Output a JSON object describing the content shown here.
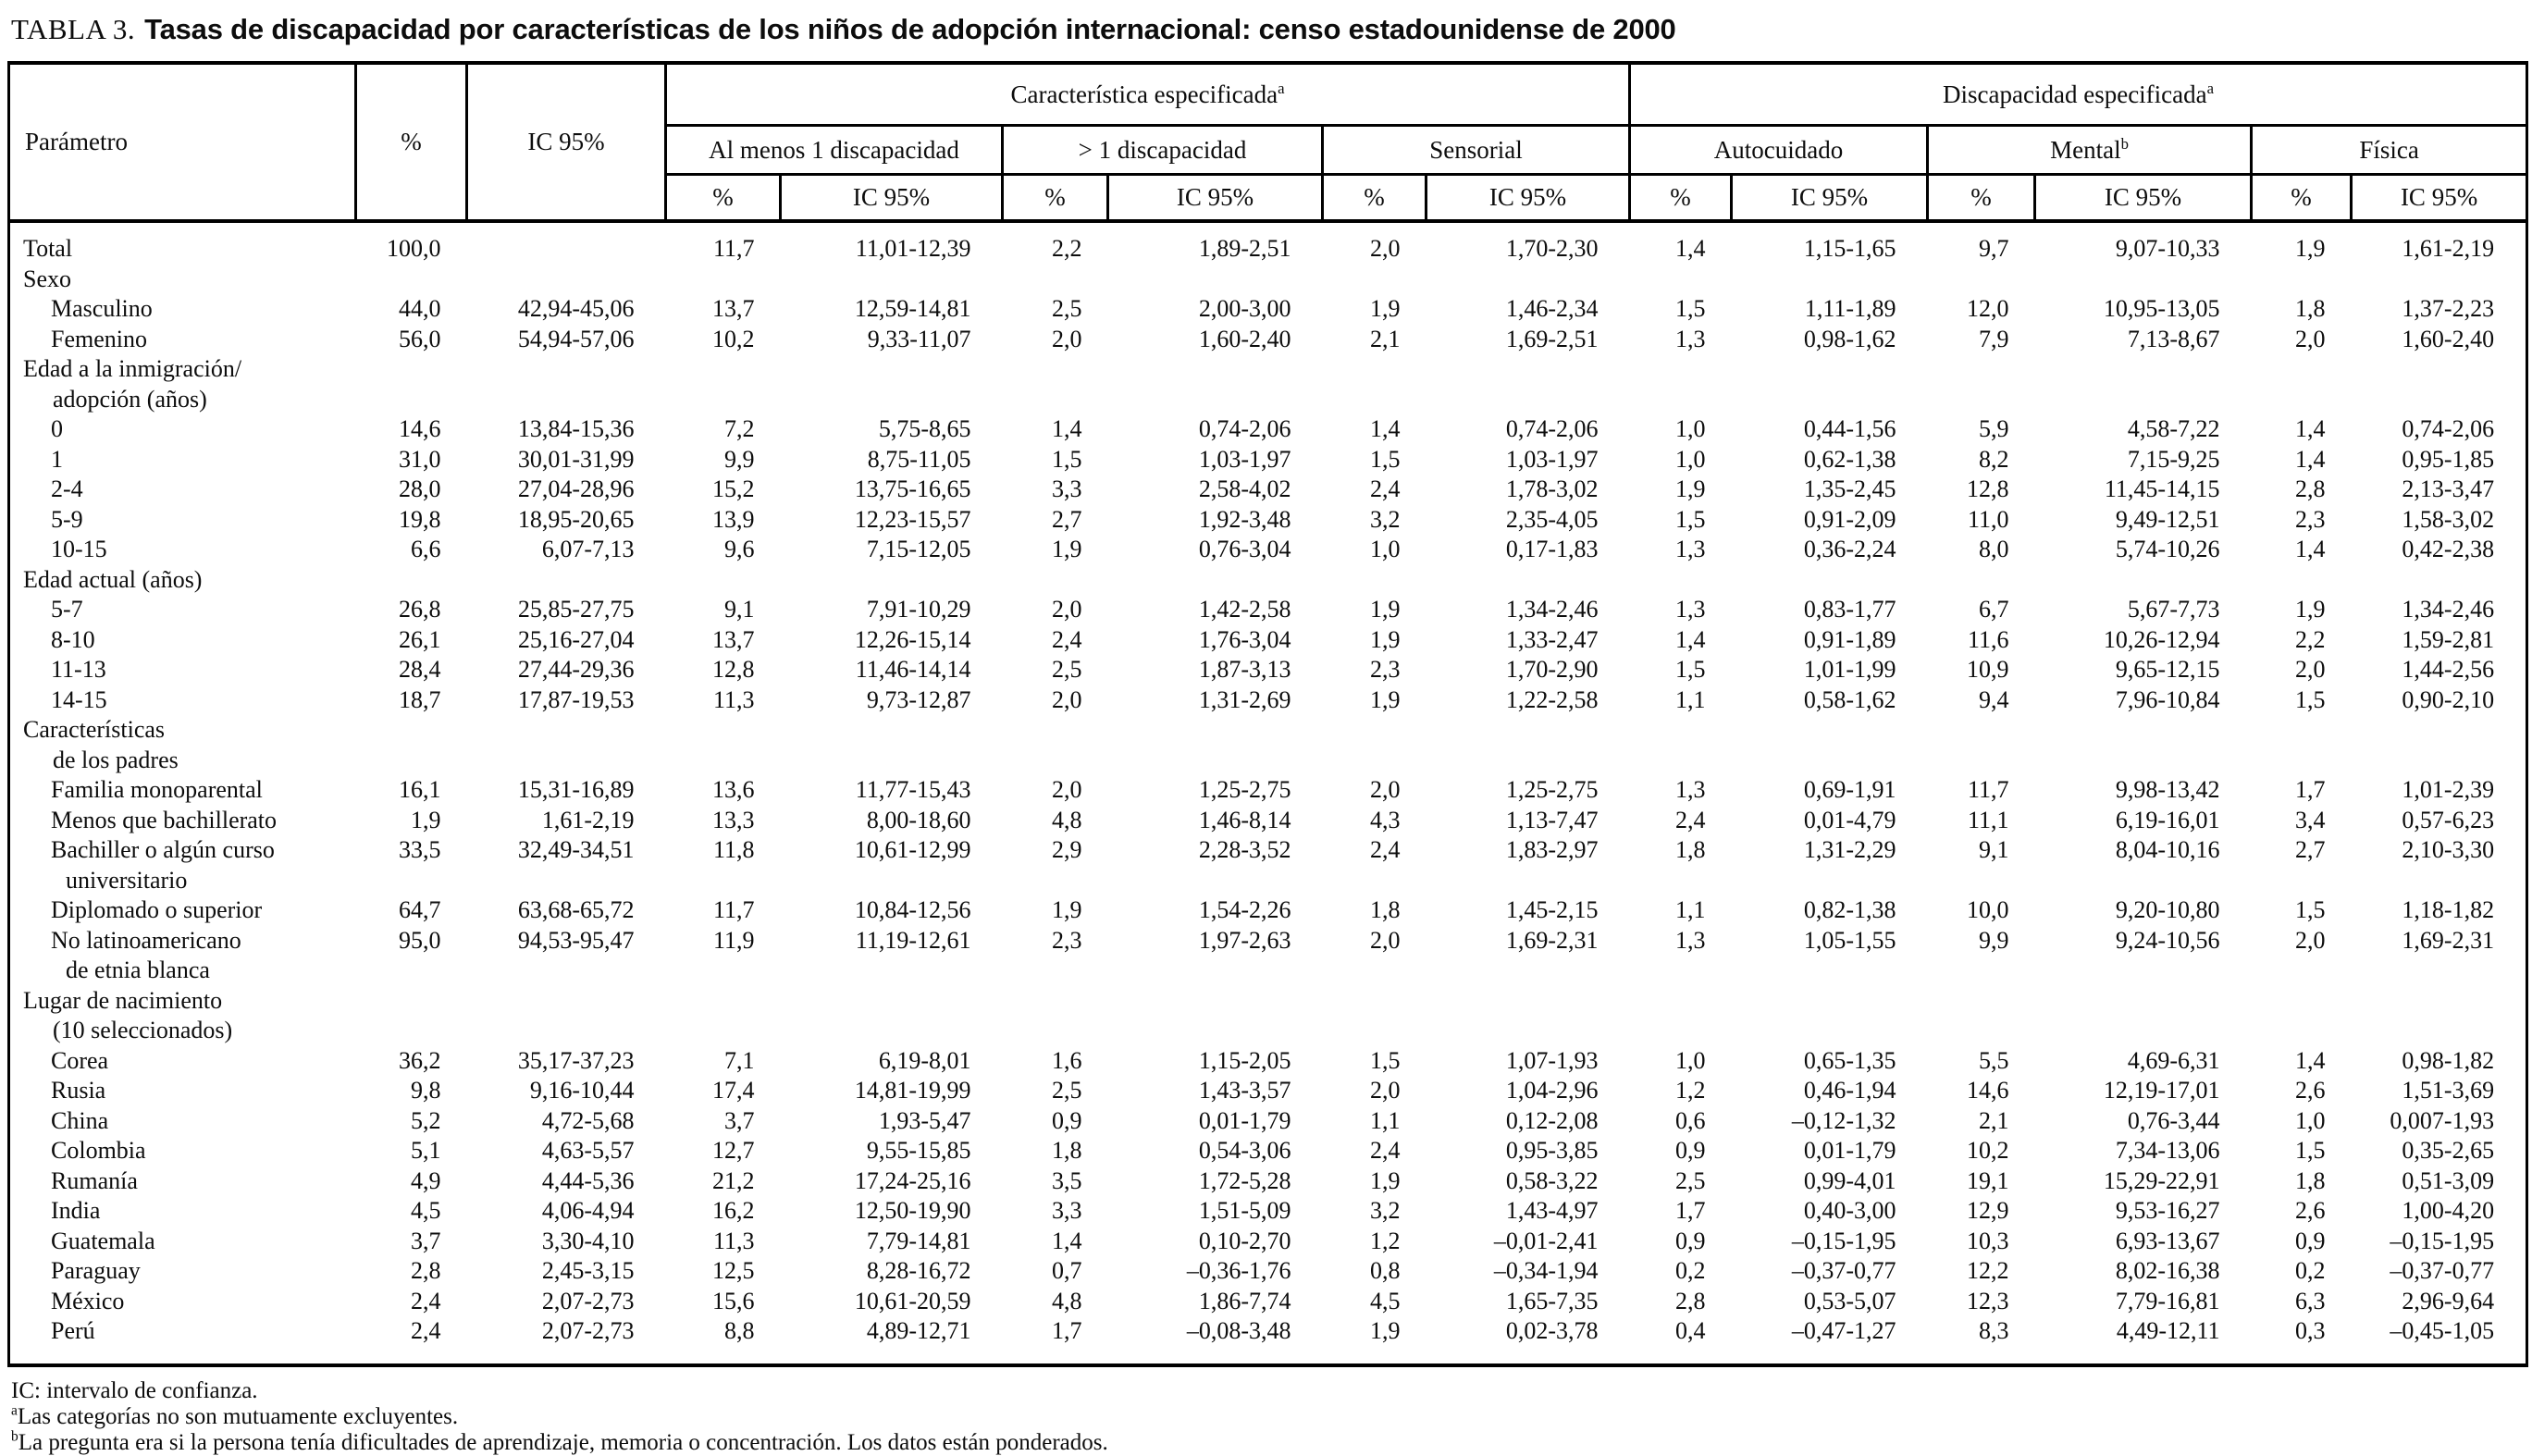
{
  "title": {
    "prefix": "TABLA 3.",
    "text": "Tasas de discapacidad por características de los niños de adopción internacional: censo estadounidense de 2000"
  },
  "table": {
    "col_headers": {
      "parametro": "Parámetro",
      "pct": "%",
      "ic95": "IC 95%",
      "sub_pct": "%",
      "sub_ic": "IC 95%",
      "groups": [
        {
          "label": "Característica especificada",
          "sup": "a"
        },
        {
          "label": "Discapacidad especificada",
          "sup": "a"
        }
      ],
      "subgroups": [
        {
          "label": "Al menos 1 discapacidad",
          "sup": ""
        },
        {
          "label": "> 1 discapacidad",
          "sup": ""
        },
        {
          "label": "Sensorial",
          "sup": ""
        },
        {
          "label": "Autocuidado",
          "sup": ""
        },
        {
          "label": "Mental",
          "sup": "b"
        },
        {
          "label": "Física",
          "sup": ""
        }
      ]
    },
    "rows": [
      {
        "label_lines": [
          "Total"
        ],
        "indent": 0,
        "cells": [
          "100,0",
          "",
          "11,7",
          "11,01-12,39",
          "2,2",
          "1,89-2,51",
          "2,0",
          "1,70-2,30",
          "1,4",
          "1,15-1,65",
          "9,7",
          "9,07-10,33",
          "1,9",
          "1,61-2,19"
        ]
      },
      {
        "label_lines": [
          "Sexo"
        ],
        "indent": 0,
        "cells": [
          "",
          "",
          "",
          "",
          "",
          "",
          "",
          "",
          "",
          "",
          "",
          "",
          "",
          ""
        ]
      },
      {
        "label_lines": [
          "Masculino"
        ],
        "indent": 1,
        "cells": [
          "44,0",
          "42,94-45,06",
          "13,7",
          "12,59-14,81",
          "2,5",
          "2,00-3,00",
          "1,9",
          "1,46-2,34",
          "1,5",
          "1,11-1,89",
          "12,0",
          "10,95-13,05",
          "1,8",
          "1,37-2,23"
        ]
      },
      {
        "label_lines": [
          "Femenino"
        ],
        "indent": 1,
        "cells": [
          "56,0",
          "54,94-57,06",
          "10,2",
          "9,33-11,07",
          "2,0",
          "1,60-2,40",
          "2,1",
          "1,69-2,51",
          "1,3",
          "0,98-1,62",
          "7,9",
          "7,13-8,67",
          "2,0",
          "1,60-2,40"
        ]
      },
      {
        "label_lines": [
          "Edad a la inmigración/",
          "adopción (años)"
        ],
        "indent": 0,
        "cells": [
          "",
          "",
          "",
          "",
          "",
          "",
          "",
          "",
          "",
          "",
          "",
          "",
          "",
          ""
        ]
      },
      {
        "label_lines": [
          "0"
        ],
        "indent": 1,
        "cells": [
          "14,6",
          "13,84-15,36",
          "7,2",
          "5,75-8,65",
          "1,4",
          "0,74-2,06",
          "1,4",
          "0,74-2,06",
          "1,0",
          "0,44-1,56",
          "5,9",
          "4,58-7,22",
          "1,4",
          "0,74-2,06"
        ]
      },
      {
        "label_lines": [
          "1"
        ],
        "indent": 1,
        "cells": [
          "31,0",
          "30,01-31,99",
          "9,9",
          "8,75-11,05",
          "1,5",
          "1,03-1,97",
          "1,5",
          "1,03-1,97",
          "1,0",
          "0,62-1,38",
          "8,2",
          "7,15-9,25",
          "1,4",
          "0,95-1,85"
        ]
      },
      {
        "label_lines": [
          "2-4"
        ],
        "indent": 1,
        "cells": [
          "28,0",
          "27,04-28,96",
          "15,2",
          "13,75-16,65",
          "3,3",
          "2,58-4,02",
          "2,4",
          "1,78-3,02",
          "1,9",
          "1,35-2,45",
          "12,8",
          "11,45-14,15",
          "2,8",
          "2,13-3,47"
        ]
      },
      {
        "label_lines": [
          "5-9"
        ],
        "indent": 1,
        "cells": [
          "19,8",
          "18,95-20,65",
          "13,9",
          "12,23-15,57",
          "2,7",
          "1,92-3,48",
          "3,2",
          "2,35-4,05",
          "1,5",
          "0,91-2,09",
          "11,0",
          "9,49-12,51",
          "2,3",
          "1,58-3,02"
        ]
      },
      {
        "label_lines": [
          "10-15"
        ],
        "indent": 1,
        "cells": [
          "6,6",
          "6,07-7,13",
          "9,6",
          "7,15-12,05",
          "1,9",
          "0,76-3,04",
          "1,0",
          "0,17-1,83",
          "1,3",
          "0,36-2,24",
          "8,0",
          "5,74-10,26",
          "1,4",
          "0,42-2,38"
        ]
      },
      {
        "label_lines": [
          "Edad actual (años)"
        ],
        "indent": 0,
        "cells": [
          "",
          "",
          "",
          "",
          "",
          "",
          "",
          "",
          "",
          "",
          "",
          "",
          "",
          ""
        ]
      },
      {
        "label_lines": [
          "5-7"
        ],
        "indent": 1,
        "cells": [
          "26,8",
          "25,85-27,75",
          "9,1",
          "7,91-10,29",
          "2,0",
          "1,42-2,58",
          "1,9",
          "1,34-2,46",
          "1,3",
          "0,83-1,77",
          "6,7",
          "5,67-7,73",
          "1,9",
          "1,34-2,46"
        ]
      },
      {
        "label_lines": [
          "8-10"
        ],
        "indent": 1,
        "cells": [
          "26,1",
          "25,16-27,04",
          "13,7",
          "12,26-15,14",
          "2,4",
          "1,76-3,04",
          "1,9",
          "1,33-2,47",
          "1,4",
          "0,91-1,89",
          "11,6",
          "10,26-12,94",
          "2,2",
          "1,59-2,81"
        ]
      },
      {
        "label_lines": [
          "11-13"
        ],
        "indent": 1,
        "cells": [
          "28,4",
          "27,44-29,36",
          "12,8",
          "11,46-14,14",
          "2,5",
          "1,87-3,13",
          "2,3",
          "1,70-2,90",
          "1,5",
          "1,01-1,99",
          "10,9",
          "9,65-12,15",
          "2,0",
          "1,44-2,56"
        ]
      },
      {
        "label_lines": [
          "14-15"
        ],
        "indent": 1,
        "cells": [
          "18,7",
          "17,87-19,53",
          "11,3",
          "9,73-12,87",
          "2,0",
          "1,31-2,69",
          "1,9",
          "1,22-2,58",
          "1,1",
          "0,58-1,62",
          "9,4",
          "7,96-10,84",
          "1,5",
          "0,90-2,10"
        ]
      },
      {
        "label_lines": [
          "Características",
          "de los padres"
        ],
        "indent": 0,
        "cells": [
          "",
          "",
          "",
          "",
          "",
          "",
          "",
          "",
          "",
          "",
          "",
          "",
          "",
          ""
        ]
      },
      {
        "label_lines": [
          "Familia monoparental"
        ],
        "indent": 1,
        "cells": [
          "16,1",
          "15,31-16,89",
          "13,6",
          "11,77-15,43",
          "2,0",
          "1,25-2,75",
          "2,0",
          "1,25-2,75",
          "1,3",
          "0,69-1,91",
          "11,7",
          "9,98-13,42",
          "1,7",
          "1,01-2,39"
        ]
      },
      {
        "label_lines": [
          "Menos que bachillerato"
        ],
        "indent": 1,
        "cells": [
          "1,9",
          "1,61-2,19",
          "13,3",
          "8,00-18,60",
          "4,8",
          "1,46-8,14",
          "4,3",
          "1,13-7,47",
          "2,4",
          "0,01-4,79",
          "11,1",
          "6,19-16,01",
          "3,4",
          "0,57-6,23"
        ]
      },
      {
        "label_lines": [
          "Bachiller o algún curso",
          "universitario"
        ],
        "indent": 1,
        "cells": [
          "33,5",
          "32,49-34,51",
          "11,8",
          "10,61-12,99",
          "2,9",
          "2,28-3,52",
          "2,4",
          "1,83-2,97",
          "1,8",
          "1,31-2,29",
          "9,1",
          "8,04-10,16",
          "2,7",
          "2,10-3,30"
        ]
      },
      {
        "label_lines": [
          "Diplomado o superior"
        ],
        "indent": 1,
        "cells": [
          "64,7",
          "63,68-65,72",
          "11,7",
          "10,84-12,56",
          "1,9",
          "1,54-2,26",
          "1,8",
          "1,45-2,15",
          "1,1",
          "0,82-1,38",
          "10,0",
          "9,20-10,80",
          "1,5",
          "1,18-1,82"
        ]
      },
      {
        "label_lines": [
          "No latinoamericano",
          "de etnia blanca"
        ],
        "indent": 1,
        "cells": [
          "95,0",
          "94,53-95,47",
          "11,9",
          "11,19-12,61",
          "2,3",
          "1,97-2,63",
          "2,0",
          "1,69-2,31",
          "1,3",
          "1,05-1,55",
          "9,9",
          "9,24-10,56",
          "2,0",
          "1,69-2,31"
        ]
      },
      {
        "label_lines": [
          "Lugar de nacimiento",
          "(10 seleccionados)"
        ],
        "indent": 0,
        "cells": [
          "",
          "",
          "",
          "",
          "",
          "",
          "",
          "",
          "",
          "",
          "",
          "",
          "",
          ""
        ]
      },
      {
        "label_lines": [
          "Corea"
        ],
        "indent": 1,
        "cells": [
          "36,2",
          "35,17-37,23",
          "7,1",
          "6,19-8,01",
          "1,6",
          "1,15-2,05",
          "1,5",
          "1,07-1,93",
          "1,0",
          "0,65-1,35",
          "5,5",
          "4,69-6,31",
          "1,4",
          "0,98-1,82"
        ]
      },
      {
        "label_lines": [
          "Rusia"
        ],
        "indent": 1,
        "cells": [
          "9,8",
          "9,16-10,44",
          "17,4",
          "14,81-19,99",
          "2,5",
          "1,43-3,57",
          "2,0",
          "1,04-2,96",
          "1,2",
          "0,46-1,94",
          "14,6",
          "12,19-17,01",
          "2,6",
          "1,51-3,69"
        ]
      },
      {
        "label_lines": [
          "China"
        ],
        "indent": 1,
        "cells": [
          "5,2",
          "4,72-5,68",
          "3,7",
          "1,93-5,47",
          "0,9",
          "0,01-1,79",
          "1,1",
          "0,12-2,08",
          "0,6",
          "–0,12-1,32",
          "2,1",
          "0,76-3,44",
          "1,0",
          "0,007-1,93"
        ]
      },
      {
        "label_lines": [
          "Colombia"
        ],
        "indent": 1,
        "cells": [
          "5,1",
          "4,63-5,57",
          "12,7",
          "9,55-15,85",
          "1,8",
          "0,54-3,06",
          "2,4",
          "0,95-3,85",
          "0,9",
          "0,01-1,79",
          "10,2",
          "7,34-13,06",
          "1,5",
          "0,35-2,65"
        ]
      },
      {
        "label_lines": [
          "Rumanía"
        ],
        "indent": 1,
        "cells": [
          "4,9",
          "4,44-5,36",
          "21,2",
          "17,24-25,16",
          "3,5",
          "1,72-5,28",
          "1,9",
          "0,58-3,22",
          "2,5",
          "0,99-4,01",
          "19,1",
          "15,29-22,91",
          "1,8",
          "0,51-3,09"
        ]
      },
      {
        "label_lines": [
          "India"
        ],
        "indent": 1,
        "cells": [
          "4,5",
          "4,06-4,94",
          "16,2",
          "12,50-19,90",
          "3,3",
          "1,51-5,09",
          "3,2",
          "1,43-4,97",
          "1,7",
          "0,40-3,00",
          "12,9",
          "9,53-16,27",
          "2,6",
          "1,00-4,20"
        ]
      },
      {
        "label_lines": [
          "Guatemala"
        ],
        "indent": 1,
        "cells": [
          "3,7",
          "3,30-4,10",
          "11,3",
          "7,79-14,81",
          "1,4",
          "0,10-2,70",
          "1,2",
          "–0,01-2,41",
          "0,9",
          "–0,15-1,95",
          "10,3",
          "6,93-13,67",
          "0,9",
          "–0,15-1,95"
        ]
      },
      {
        "label_lines": [
          "Paraguay"
        ],
        "indent": 1,
        "cells": [
          "2,8",
          "2,45-3,15",
          "12,5",
          "8,28-16,72",
          "0,7",
          "–0,36-1,76",
          "0,8",
          "–0,34-1,94",
          "0,2",
          "–0,37-0,77",
          "12,2",
          "8,02-16,38",
          "0,2",
          "–0,37-0,77"
        ]
      },
      {
        "label_lines": [
          "México"
        ],
        "indent": 1,
        "cells": [
          "2,4",
          "2,07-2,73",
          "15,6",
          "10,61-20,59",
          "4,8",
          "1,86-7,74",
          "4,5",
          "1,65-7,35",
          "2,8",
          "0,53-5,07",
          "12,3",
          "7,79-16,81",
          "6,3",
          "2,96-9,64"
        ]
      },
      {
        "label_lines": [
          "Perú"
        ],
        "indent": 1,
        "cells": [
          "2,4",
          "2,07-2,73",
          "8,8",
          "4,89-12,71",
          "1,7",
          "–0,08-3,48",
          "1,9",
          "0,02-3,78",
          "0,4",
          "–0,47-1,27",
          "8,3",
          "4,49-12,11",
          "0,3",
          "–0,45-1,05"
        ]
      }
    ]
  },
  "footnotes": [
    {
      "sup": "",
      "text": "IC: intervalo de confianza."
    },
    {
      "sup": "a",
      "text": "Las categorías no son mutuamente excluyentes."
    },
    {
      "sup": "b",
      "text": "La pregunta era si la persona tenía dificultades de aprendizaje, memoria o concentración. Los datos están ponderados."
    }
  ]
}
